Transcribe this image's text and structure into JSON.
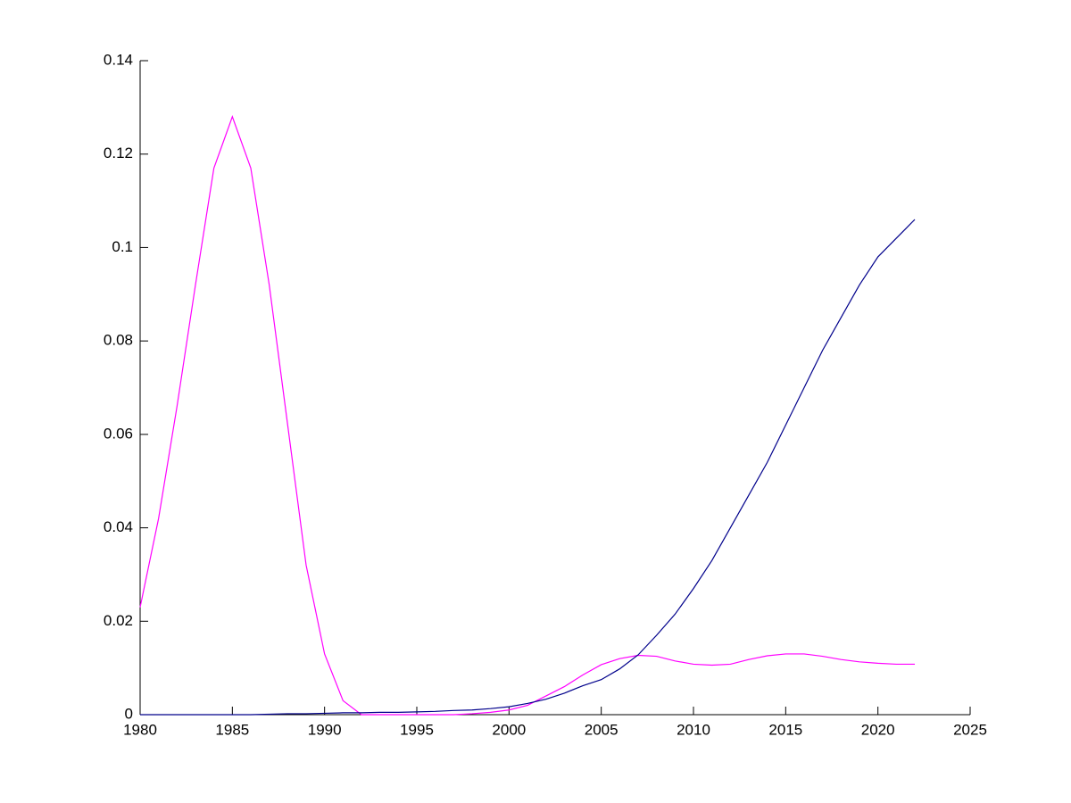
{
  "chart_data": {
    "type": "line",
    "x": [
      1980,
      1981,
      1982,
      1983,
      1984,
      1985,
      1986,
      1987,
      1988,
      1989,
      1990,
      1991,
      1992,
      1993,
      1994,
      1995,
      1996,
      1997,
      1998,
      1999,
      2000,
      2001,
      2002,
      2003,
      2004,
      2005,
      2006,
      2007,
      2008,
      2009,
      2010,
      2011,
      2012,
      2013,
      2014,
      2015,
      2016,
      2017,
      2018,
      2019,
      2020,
      2021,
      2022
    ],
    "series": [
      {
        "color": "#ff00ff",
        "values": [
          0.023,
          0.042,
          0.066,
          0.092,
          0.117,
          0.128,
          0.117,
          0.092,
          0.062,
          0.032,
          0.013,
          0.003,
          0,
          0,
          0,
          0,
          0,
          0,
          0.0002,
          0.0005,
          0.001,
          0.002,
          0.004,
          0.006,
          0.0085,
          0.0107,
          0.012,
          0.0127,
          0.0125,
          0.0115,
          0.0108,
          0.0106,
          0.0108,
          0.0118,
          0.0126,
          0.013,
          0.013,
          0.0125,
          0.0118,
          0.0113,
          0.011,
          0.0108,
          0.0108
        ]
      },
      {
        "color": "#00008b",
        "values": [
          0,
          0,
          0,
          0,
          0,
          0,
          0,
          0.0001,
          0.0002,
          0.0002,
          0.0003,
          0.0004,
          0.0004,
          0.0005,
          0.0005,
          0.0006,
          0.0007,
          0.0009,
          0.001,
          0.0013,
          0.0017,
          0.0024,
          0.0033,
          0.0046,
          0.0062,
          0.0075,
          0.0098,
          0.0128,
          0.017,
          0.0215,
          0.027,
          0.033,
          0.04,
          0.047,
          0.054,
          0.062,
          0.07,
          0.078,
          0.085,
          0.092,
          0.098,
          0.102,
          0.106
        ]
      }
    ],
    "xlim": [
      1980,
      2025
    ],
    "xticks": [
      1980,
      1985,
      1990,
      1995,
      2000,
      2005,
      2010,
      2015,
      2020,
      2025
    ],
    "ylim": [
      0,
      0.14
    ],
    "yticks": [
      0,
      0.02,
      0.04,
      0.06,
      0.08,
      0.1,
      0.12,
      0.14
    ]
  }
}
